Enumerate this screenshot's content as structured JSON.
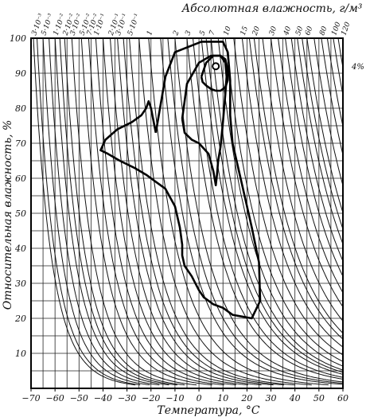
{
  "chart_data": {
    "type": "line",
    "title": "Абсолютная влажность, г/м³",
    "xlabel": "Температура, °С",
    "ylabel": "Относительная влажность, %",
    "xlim": [
      -70,
      60
    ],
    "ylim": [
      0,
      100
    ],
    "grid": true,
    "x_ticks": [
      -70,
      -60,
      -50,
      -40,
      -30,
      -20,
      -10,
      0,
      10,
      20,
      30,
      40,
      50,
      60
    ],
    "x_tick_labels": [
      "−70",
      "−60",
      "−50",
      "−40",
      "−30",
      "−20",
      "−10",
      "0",
      "10",
      "20",
      "30",
      "40",
      "50",
      "60"
    ],
    "y_ticks": [
      10,
      20,
      30,
      40,
      50,
      60,
      70,
      80,
      90,
      100
    ],
    "y_tick_labels": [
      "10",
      "20",
      "30",
      "40",
      "50",
      "60",
      "70",
      "80",
      "90",
      "100"
    ],
    "top_labels": [
      {
        "text": "3·10⁻³",
        "x": -69
      },
      {
        "text": "5·10⁻³",
        "x": -65
      },
      {
        "text": "1·10⁻²",
        "x": -60
      },
      {
        "text": "2·10⁻²",
        "x": -56
      },
      {
        "text": "3·10⁻²",
        "x": -53
      },
      {
        "text": "5·10⁻²",
        "x": -49
      },
      {
        "text": "7·10⁻²",
        "x": -46
      },
      {
        "text": "1·10⁻¹",
        "x": -43
      },
      {
        "text": "2·10⁻¹",
        "x": -37
      },
      {
        "text": "3·10⁻¹",
        "x": -34
      },
      {
        "text": "5·10⁻¹",
        "x": -29
      },
      {
        "text": "1",
        "x": -21
      },
      {
        "text": "2",
        "x": -10
      },
      {
        "text": "3",
        "x": -5
      },
      {
        "text": "5",
        "x": 1
      },
      {
        "text": "7",
        "x": 5
      },
      {
        "text": "10",
        "x": 11
      },
      {
        "text": "15",
        "x": 18
      },
      {
        "text": "20",
        "x": 23
      },
      {
        "text": "30",
        "x": 30
      },
      {
        "text": "40",
        "x": 36
      },
      {
        "text": "50",
        "x": 41
      },
      {
        "text": "60",
        "x": 45
      },
      {
        "text": "80",
        "x": 51
      },
      {
        "text": "100",
        "x": 56
      },
      {
        "text": "120",
        "x": 60
      }
    ],
    "side_label": {
      "text": "4%",
      "x": 63,
      "y": 92
    },
    "isoline_top_x": [
      -69,
      -65,
      -60,
      -56,
      -53,
      -49,
      -46,
      -43,
      -37,
      -34,
      -29,
      -21,
      -10,
      -5,
      1,
      5,
      11,
      18,
      23,
      30,
      36,
      41,
      45,
      51,
      56,
      60
    ],
    "isoline_top_x_unlabeled": [
      -67.5,
      -62.5,
      -58,
      -40,
      -31.5,
      -25,
      -16,
      -13,
      -2.5,
      3,
      8,
      14.5,
      21,
      26.5,
      33,
      38.5,
      43,
      48,
      53.5,
      58
    ],
    "series": [
      {
        "x": [
          -18,
          -14,
          -10,
          1,
          10,
          12,
          13,
          13,
          14,
          18,
          22,
          25,
          25.5,
          22,
          18,
          14,
          10,
          6,
          2,
          0,
          -3,
          -6,
          -7,
          -7,
          -8,
          -10,
          -14,
          -18,
          -22,
          -27,
          -33,
          -38,
          -41,
          -39,
          -34,
          -28,
          -24,
          -22,
          -21,
          -20,
          -18
        ],
        "y": [
          73,
          89,
          96,
          99,
          99,
          96,
          88,
          78,
          70,
          58,
          46,
          36,
          25,
          20,
          20.5,
          21,
          23,
          24,
          26,
          28,
          32,
          35,
          38,
          41,
          46,
          52,
          57,
          59,
          61,
          63,
          65,
          67,
          68,
          71,
          74,
          76,
          78,
          80,
          82,
          80,
          73
        ]
      },
      {
        "x": [
          -7,
          -5,
          0,
          5,
          9,
          11,
          11.5,
          11,
          10,
          9,
          8,
          7.5,
          7,
          6,
          4,
          0,
          -3,
          -6,
          -7
        ],
        "y": [
          77,
          87,
          93,
          95,
          95,
          93,
          89,
          84,
          76,
          69,
          65,
          61,
          58,
          62,
          67,
          70,
          71,
          73,
          77
        ]
      },
      {
        "x": [
          1,
          3,
          6,
          9,
          11,
          12,
          12,
          11,
          9,
          7,
          5,
          3,
          1.5,
          1
        ],
        "y": [
          89,
          93,
          95,
          95,
          94,
          91,
          88,
          86,
          85,
          85,
          85.5,
          86.5,
          87.5,
          89
        ]
      }
    ],
    "point": {
      "x": 7,
      "y": 92
    }
  }
}
